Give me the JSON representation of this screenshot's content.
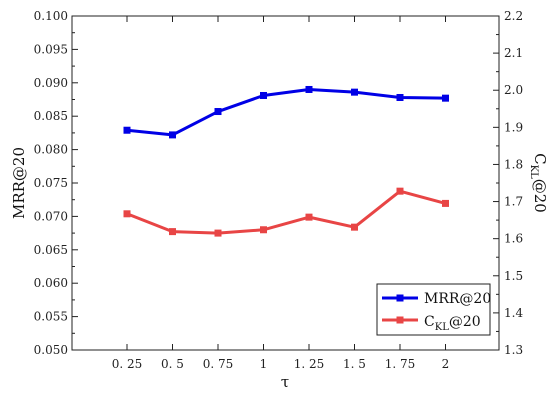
{
  "chart_data": {
    "type": "line",
    "x": [
      "0.25",
      "0.5",
      "0.75",
      "1",
      "1.25",
      "1.5",
      "1.75",
      "2"
    ],
    "xlabel": "τ",
    "ylabel_left": "MRR@20",
    "ylabel_right": "C_KL@20",
    "ylim_left": [
      0.05,
      0.1
    ],
    "ylim_right": [
      1.3,
      2.2
    ],
    "yticks_left": [
      "0.050",
      "0.055",
      "0.060",
      "0.065",
      "0.070",
      "0.075",
      "0.080",
      "0.085",
      "0.090",
      "0.095",
      "0.100"
    ],
    "yticks_right": [
      "1.3",
      "1.4",
      "1.5",
      "1.6",
      "1.7",
      "1.8",
      "1.9",
      "2.0",
      "2.1",
      "2.2"
    ],
    "series": [
      {
        "name": "MRR@20",
        "axis": "left",
        "color": "#0000e6",
        "marker": "square",
        "values": [
          0.0829,
          0.0822,
          0.0857,
          0.0881,
          0.089,
          0.0886,
          0.0878,
          0.0877
        ]
      },
      {
        "name": "C_KL@20",
        "axis": "right",
        "color": "#e84545",
        "marker": "square",
        "values": [
          1.667,
          1.619,
          1.615,
          1.624,
          1.658,
          1.631,
          1.728,
          1.695
        ]
      }
    ],
    "legend": {
      "position": "bottom-right",
      "items": [
        "MRR@20",
        "C_KL@20"
      ]
    },
    "grid": false
  }
}
